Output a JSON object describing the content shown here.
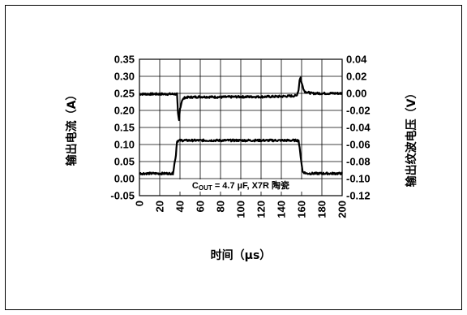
{
  "chart_data": {
    "type": "line",
    "xlabel": "时间（µs）",
    "ylabel_left": "输出电流（A）",
    "ylabel_right": "输出纹波电压（V）",
    "annotation": "COUT = 4.7 µF, X7R 陶瓷",
    "annotation_main": "C",
    "annotation_sub": "OUT",
    "annotation_rest": " = 4.7 µF, X7R 陶瓷",
    "xlim": [
      0,
      200
    ],
    "ylim_left": [
      -0.05,
      0.35
    ],
    "ylim_right": [
      -0.12,
      0.04
    ],
    "grid": true,
    "x_ticks": [
      "0",
      "20",
      "40",
      "60",
      "80",
      "100",
      "120",
      "140",
      "160",
      "180",
      "200"
    ],
    "y_left_ticks": [
      "0.35",
      "0.30",
      "0.25",
      "0.20",
      "0.15",
      "0.10",
      "0.05",
      "0.00",
      "-0.05"
    ],
    "y_right_ticks": [
      "0.04",
      "0.02",
      "0.00",
      "-0.02",
      "-0.04",
      "-0.06",
      "-0.08",
      "-0.10",
      "-0.12"
    ],
    "series": [
      {
        "axis": "left",
        "x": [
          0,
          37,
          37.5,
          38,
          39,
          40,
          42,
          45,
          60,
          80,
          100,
          120,
          140,
          155,
          157,
          158,
          159,
          160,
          163,
          170,
          180,
          200
        ],
        "y": [
          0.248,
          0.248,
          0.22,
          0.19,
          0.17,
          0.205,
          0.23,
          0.238,
          0.24,
          0.239,
          0.24,
          0.24,
          0.241,
          0.243,
          0.26,
          0.29,
          0.296,
          0.28,
          0.255,
          0.25,
          0.25,
          0.25
        ]
      },
      {
        "axis": "left",
        "x": [
          0,
          33,
          36,
          37,
          40,
          80,
          120,
          157,
          158,
          161,
          165,
          200
        ],
        "y": [
          0.015,
          0.015,
          0.07,
          0.11,
          0.112,
          0.112,
          0.112,
          0.112,
          0.09,
          0.02,
          0.015,
          0.015
        ]
      }
    ]
  }
}
